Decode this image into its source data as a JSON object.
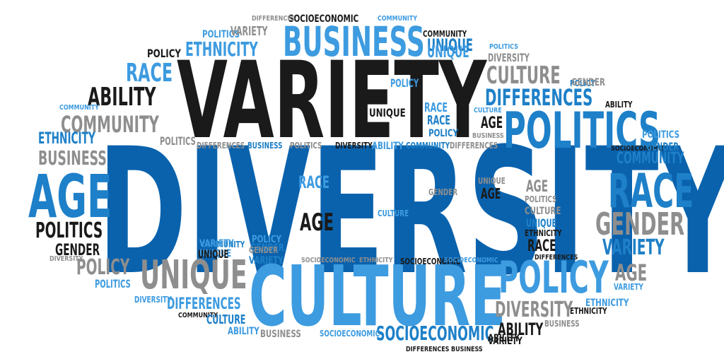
{
  "colors": {
    "black": "#1a1a1a",
    "gray": "#8e8e8e",
    "dark_blue": "#0a62ad",
    "mid_blue": "#1e80c8",
    "light_blue": "#3d9be0"
  },
  "words": [
    {
      "text": "DIVERSITY",
      "color": "dark_blue"
    },
    {
      "text": "VARIETY",
      "color": "black"
    },
    {
      "text": "CULTURE",
      "color": "light_blue"
    },
    {
      "text": "BUSINESS",
      "color": "light_blue"
    },
    {
      "text": "POLITICS",
      "color": "mid_blue"
    },
    {
      "text": "RACE",
      "color": "mid_blue"
    },
    {
      "text": "AGE",
      "color": "mid_blue"
    },
    {
      "text": "POLICY",
      "color": "light_blue"
    },
    {
      "text": "UNIQUE",
      "color": "gray"
    },
    {
      "text": "GENDER",
      "color": "gray"
    },
    {
      "text": "COMMUNITY",
      "color": "gray"
    },
    {
      "text": "DIFFERENCES",
      "color": "mid_blue"
    },
    {
      "text": "ABILITY",
      "color": "black"
    },
    {
      "text": "ETHNICITY",
      "color": "light_blue"
    },
    {
      "text": "CULTURE",
      "color": "gray"
    },
    {
      "text": "SOCIOECONOMIC",
      "color": "mid_blue"
    },
    {
      "text": "POLITICS",
      "color": "black"
    },
    {
      "text": "GENDER",
      "color": "black"
    },
    {
      "text": "POLICY",
      "color": "gray"
    },
    {
      "text": "VARIETY",
      "color": "mid_blue"
    },
    {
      "text": "AGE",
      "color": "gray"
    },
    {
      "text": "DIVERSITY",
      "color": "gray"
    },
    {
      "text": "RACE",
      "color": "light_blue"
    },
    {
      "text": "AGE",
      "color": "black"
    },
    {
      "text": "ETHNICITY",
      "color": "mid_blue"
    },
    {
      "text": "UNIQUE",
      "color": "mid_blue"
    },
    {
      "text": "COMMUNITY",
      "color": "mid_blue"
    },
    {
      "text": "BUSINESS",
      "color": "gray"
    },
    {
      "text": "ABILITY",
      "color": "black"
    },
    {
      "text": "DIFFERENCES",
      "color": "light_blue"
    },
    {
      "text": "POLITICS",
      "color": "light_blue"
    },
    {
      "text": "VARIETY",
      "color": "gray"
    },
    {
      "text": "POLICY",
      "color": "black"
    },
    {
      "text": "SOCIOECONOMIC",
      "color": "black"
    },
    {
      "text": "COMMUNITY",
      "color": "light_blue"
    },
    {
      "text": "DIFFERENCES",
      "color": "gray"
    },
    {
      "text": "COMMUNITY",
      "color": "black"
    },
    {
      "text": "UNIQUE",
      "color": "light_blue"
    },
    {
      "text": "POLITICS",
      "color": "light_blue"
    },
    {
      "text": "DIVERSITY",
      "color": "gray"
    },
    {
      "text": "POLICY",
      "color": "light_blue"
    },
    {
      "text": "UNIQUE",
      "color": "black"
    },
    {
      "text": "RACE",
      "color": "light_blue"
    },
    {
      "text": "RACE",
      "color": "mid_blue"
    },
    {
      "text": "CULTURE",
      "color": "light_blue"
    },
    {
      "text": "POLICY",
      "color": "mid_blue"
    },
    {
      "text": "AGE",
      "color": "black"
    },
    {
      "text": "BUSINESS",
      "color": "gray"
    },
    {
      "text": "ABILITY",
      "color": "light_blue"
    },
    {
      "text": "COMMUNITY",
      "color": "mid_blue"
    },
    {
      "text": "DIFFERENCES",
      "color": "gray"
    },
    {
      "text": "DIFFERENCES",
      "color": "gray"
    },
    {
      "text": "BUSINESS",
      "color": "mid_blue"
    },
    {
      "text": "POLITICS",
      "color": "gray"
    },
    {
      "text": "DIVERSITY",
      "color": "black"
    },
    {
      "text": "CULTURE",
      "color": "light_blue"
    },
    {
      "text": "GENDER",
      "color": "gray"
    },
    {
      "text": "AGE",
      "color": "black"
    },
    {
      "text": "RACE",
      "color": "light_blue"
    },
    {
      "text": "UNIQUE",
      "color": "gray"
    },
    {
      "text": "AGE",
      "color": "black"
    },
    {
      "text": "AGE",
      "color": "gray"
    },
    {
      "text": "POLITICS",
      "color": "gray"
    },
    {
      "text": "CULTURE",
      "color": "gray"
    },
    {
      "text": "UNIQUE",
      "color": "mid_blue"
    },
    {
      "text": "ETHNICITY",
      "color": "black"
    },
    {
      "text": "RACE",
      "color": "black"
    },
    {
      "text": "DIFFERENCES",
      "color": "black"
    },
    {
      "text": "GENDER",
      "color": "gray"
    },
    {
      "text": "ABILITY",
      "color": "black"
    },
    {
      "text": "BUSINESS",
      "color": "gray"
    },
    {
      "text": "SOCIOECONOMIC",
      "color": "gray"
    },
    {
      "text": "GENDER",
      "color": "mid_blue"
    },
    {
      "text": "COMMUNITY",
      "color": "mid_blue"
    },
    {
      "text": "ABILITY",
      "color": "black"
    },
    {
      "text": "VARIETY",
      "color": "light_blue"
    },
    {
      "text": "UNIQUE",
      "color": "light_blue"
    },
    {
      "text": "POLICY",
      "color": "light_blue"
    },
    {
      "text": "GENDER",
      "color": "gray"
    },
    {
      "text": "VARIETY",
      "color": "mid_blue"
    },
    {
      "text": "DIVERSITY",
      "color": "gray"
    },
    {
      "text": "UNIQUE",
      "color": "black"
    },
    {
      "text": "VARIETY",
      "color": "light_blue"
    },
    {
      "text": "SOCIOECONOMIC",
      "color": "black"
    },
    {
      "text": "ETHNICITY",
      "color": "gray"
    },
    {
      "text": "COMMUNITY",
      "color": "black"
    },
    {
      "text": "SOCIOECONOMIC",
      "color": "light_blue"
    },
    {
      "text": "POLICY",
      "color": "gray"
    },
    {
      "text": "POLITICS",
      "color": "light_blue"
    },
    {
      "text": "DIVERSITY",
      "color": "light_blue"
    },
    {
      "text": "DIFFERENCES",
      "color": "mid_blue"
    },
    {
      "text": "COMMUNITY",
      "color": "black"
    },
    {
      "text": "CULTURE",
      "color": "mid_blue"
    },
    {
      "text": "ABILITY",
      "color": "light_blue"
    },
    {
      "text": "BUSINESS",
      "color": "gray"
    },
    {
      "text": "SOCIOECONOMIC",
      "color": "light_blue"
    },
    {
      "text": "SOCIOECONOMIC",
      "color": "mid_blue"
    },
    {
      "text": "DIFFERENCES",
      "color": "black"
    },
    {
      "text": "BUSINESS",
      "color": "black"
    },
    {
      "text": "ABILITY",
      "color": "black"
    },
    {
      "text": "BUSINESS",
      "color": "gray"
    },
    {
      "text": "VARIETY",
      "color": "black"
    },
    {
      "text": "ETHNICITY",
      "color": "light_blue"
    },
    {
      "text": "ETHNICITY",
      "color": "black"
    },
    {
      "text": "DIVERSITY",
      "color": "gray"
    },
    {
      "text": "AGE",
      "color": "gray"
    },
    {
      "text": "VARIETY",
      "color": "light_blue"
    },
    {
      "text": "POLICY",
      "color": "mid_blue"
    },
    {
      "text": "GENDER",
      "color": "gray"
    },
    {
      "text": "RACE",
      "color": "mid_blue"
    },
    {
      "text": "COMMUNITY",
      "color": "mid_blue"
    },
    {
      "text": "SOCIOECONOMIC",
      "color": "black"
    },
    {
      "text": "GENDER",
      "color": "mid_blue"
    },
    {
      "text": "BUSINESS",
      "color": "gray"
    },
    {
      "text": "ABILITY",
      "color": "black"
    },
    {
      "text": "POLITICS",
      "color": "light_blue"
    },
    {
      "text": "VARIETY",
      "color": "gray"
    },
    {
      "text": "DIFFERENCES",
      "color": "mid_blue"
    },
    {
      "text": "CULTURE",
      "color": "gray"
    },
    {
      "text": "COMMUNITY",
      "color": "light_blue"
    },
    {
      "text": "POLITICS",
      "color": "gray"
    },
    {
      "text": "UNIQUE",
      "color": "mid_blue"
    }
  ]
}
